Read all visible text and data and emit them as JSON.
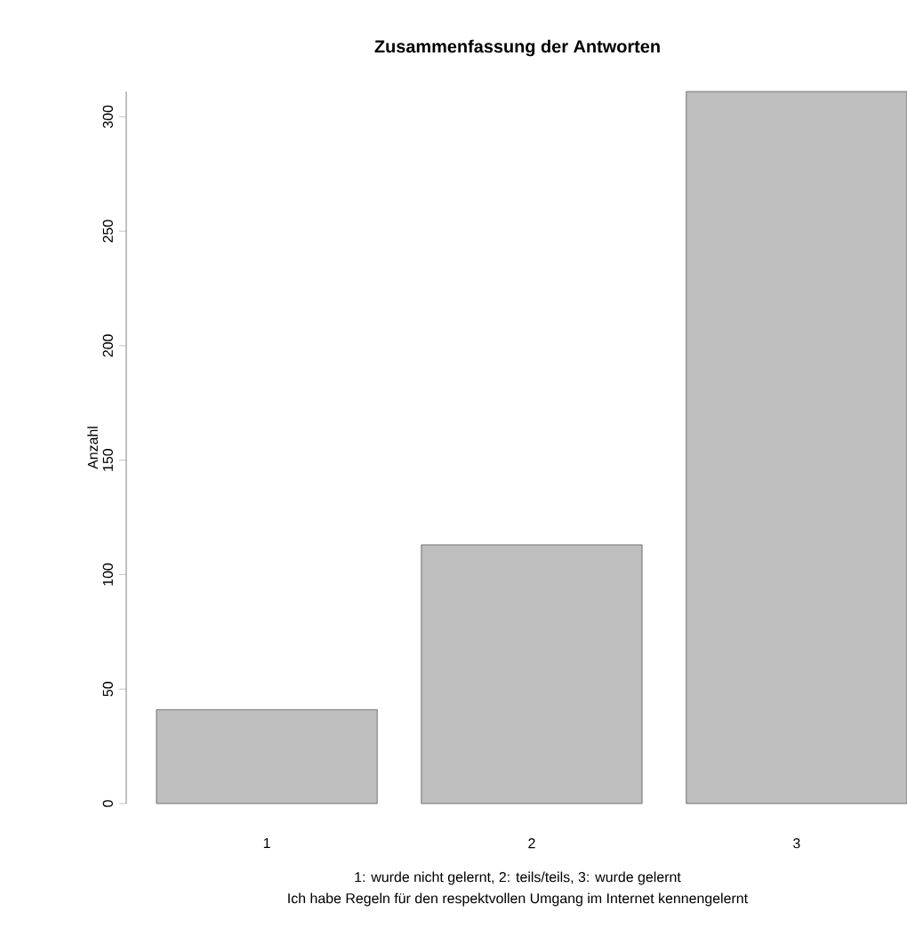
{
  "chart_data": {
    "type": "bar",
    "title": "Zusammenfassung der Antworten",
    "subtitle": "Ich habe Regeln für den respektvollen Umgang im Internet kennengelernt",
    "xlabel": "1: wurde nicht gelernt, 2: teils/teils, 3: wurde gelernt",
    "ylabel": "Anzahl",
    "categories": [
      "1",
      "2",
      "3"
    ],
    "values": [
      41,
      113,
      311
    ],
    "color": "#bebebe",
    "ylim": [
      0,
      311
    ],
    "yticks": [
      0,
      50,
      100,
      150,
      200,
      250,
      300
    ],
    "grid": false
  }
}
